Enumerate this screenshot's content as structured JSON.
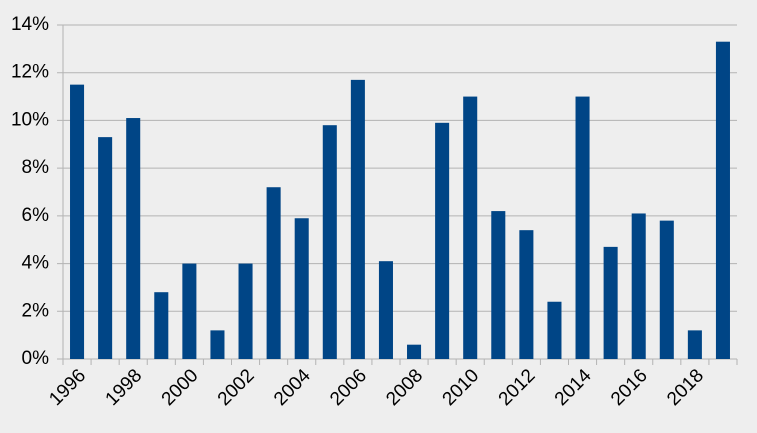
{
  "chart_data": {
    "type": "bar",
    "categories": [
      "1996",
      null,
      "1998",
      null,
      "2000",
      null,
      "2002",
      null,
      "2004",
      null,
      "2006",
      null,
      "2008",
      null,
      "2010",
      null,
      "2012",
      null,
      "2014",
      null,
      "2016",
      null,
      "2018",
      null
    ],
    "values": [
      11.5,
      9.3,
      10.1,
      2.8,
      4.0,
      1.2,
      4.0,
      7.2,
      5.9,
      9.8,
      11.7,
      4.1,
      0.6,
      9.9,
      11.0,
      6.2,
      5.4,
      2.4,
      11.0,
      4.7,
      6.1,
      5.8,
      1.2,
      13.3
    ],
    "color": "#004586",
    "ylim": [
      0,
      14
    ],
    "yticks": [
      {
        "value": 0,
        "label": "0%"
      },
      {
        "value": 2,
        "label": "2%"
      },
      {
        "value": 4,
        "label": "4%"
      },
      {
        "value": 6,
        "label": "6%"
      },
      {
        "value": 8,
        "label": "8%"
      },
      {
        "value": 10,
        "label": "10%"
      },
      {
        "value": 12,
        "label": "12%"
      },
      {
        "value": 14,
        "label": "14%"
      }
    ],
    "grid": true
  }
}
